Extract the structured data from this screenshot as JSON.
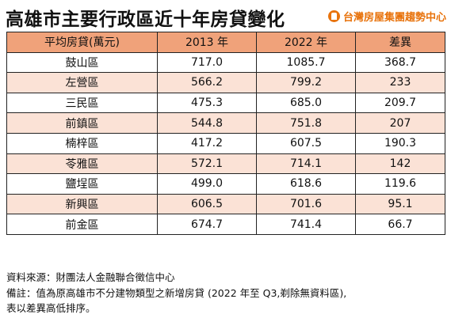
{
  "title": "高雄市主要行政區近十年房貸變化",
  "brand": {
    "name": "台灣房屋集團趨勢中心",
    "logo_icon": "house-logo-icon",
    "color": "#e8730c"
  },
  "table": {
    "headers": [
      "平均房貸(萬元)",
      "2013 年",
      "2022 年",
      "差異"
    ],
    "rows": [
      [
        "鼓山區",
        "717.0",
        "1085.7",
        "368.7"
      ],
      [
        "左營區",
        "566.2",
        "799.2",
        "233"
      ],
      [
        "三民區",
        "475.3",
        "685.0",
        "209.7"
      ],
      [
        "前鎮區",
        "544.8",
        "751.8",
        "207"
      ],
      [
        "楠梓區",
        "417.2",
        "607.5",
        "190.3"
      ],
      [
        "苓雅區",
        "572.1",
        "714.1",
        "142"
      ],
      [
        "鹽埕區",
        "499.0",
        "618.6",
        "119.6"
      ],
      [
        "新興區",
        "606.5",
        "701.6",
        "95.1"
      ],
      [
        "前金區",
        "674.7",
        "741.4",
        "66.7"
      ]
    ],
    "header_color": "#f0a27a",
    "stripe_color": "#fbe2d6"
  },
  "notes": {
    "source": "資料來源：財團法人金融聯合徵信中心",
    "remark_line1": "備註：值為原高雄市不分建物類型之新增房貸 (2022 年至 Q3,剃除無資料區),",
    "remark_line2": "表以差異高低排序。"
  }
}
